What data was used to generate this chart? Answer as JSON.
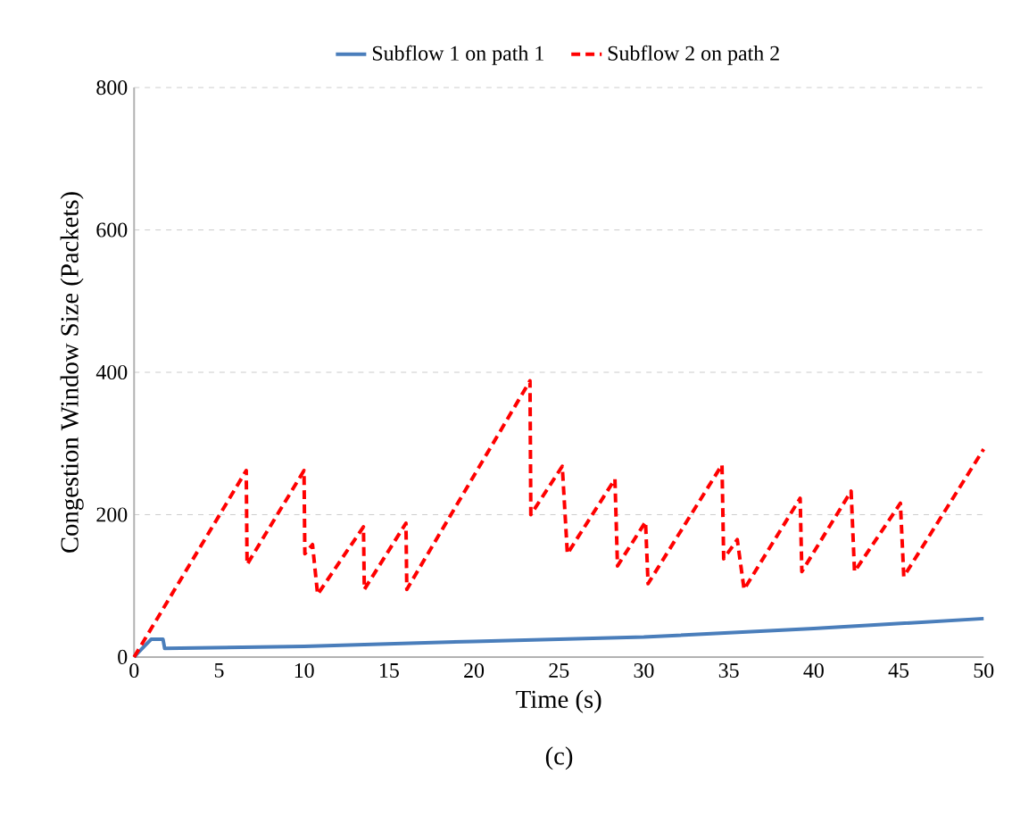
{
  "chart_data": {
    "type": "line",
    "xlabel": "Time (s)",
    "ylabel": "Congestion Window Size (Packets)",
    "annotations": [
      "(c)"
    ],
    "xlim": [
      0,
      50
    ],
    "ylim": [
      0,
      800
    ],
    "xticks": [
      0,
      5,
      10,
      15,
      20,
      25,
      30,
      35,
      40,
      45,
      50
    ],
    "yticks": [
      0,
      200,
      400,
      600,
      800
    ],
    "grid": "y",
    "legend": "top",
    "marker": "none",
    "series": [
      {
        "name": "Subflow 1 on path 1",
        "color": "#4a7ebb",
        "line_style": "solid",
        "x": [
          0,
          0.6,
          1,
          1.7,
          1.8,
          10,
          20,
          30,
          40,
          50
        ],
        "values": [
          0,
          15,
          25,
          25,
          12,
          15,
          22,
          28,
          40,
          54
        ]
      },
      {
        "name": "Subflow 2 on path 2",
        "color": "#ff0000",
        "line_style": "dashed",
        "x": [
          0,
          6.6,
          6.65,
          10.0,
          10.05,
          10.5,
          10.8,
          13.5,
          13.55,
          16.0,
          16.05,
          23.3,
          23.35,
          25.2,
          25.5,
          28.3,
          28.45,
          30.1,
          30.25,
          34.6,
          34.7,
          35.5,
          35.9,
          39.2,
          39.3,
          42.2,
          42.4,
          45.1,
          45.3,
          50
        ],
        "values": [
          0,
          262,
          130,
          262,
          145,
          158,
          88,
          183,
          95,
          188,
          95,
          388,
          200,
          268,
          145,
          250,
          128,
          190,
          103,
          270,
          138,
          165,
          95,
          223,
          120,
          233,
          120,
          216,
          113,
          292
        ]
      }
    ]
  }
}
